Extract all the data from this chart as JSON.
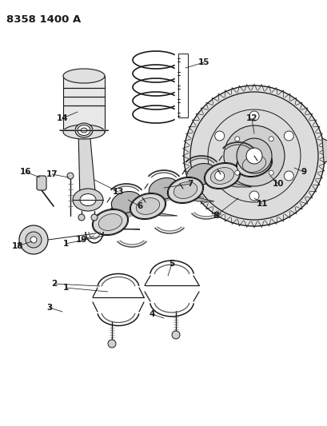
{
  "title": "8358 1400 A",
  "bg_color": "#ffffff",
  "line_color": "#1a1a1a",
  "title_fontsize": 9.5,
  "label_fontsize": 7.5,
  "fig_width": 4.1,
  "fig_height": 5.33,
  "dpi": 100
}
